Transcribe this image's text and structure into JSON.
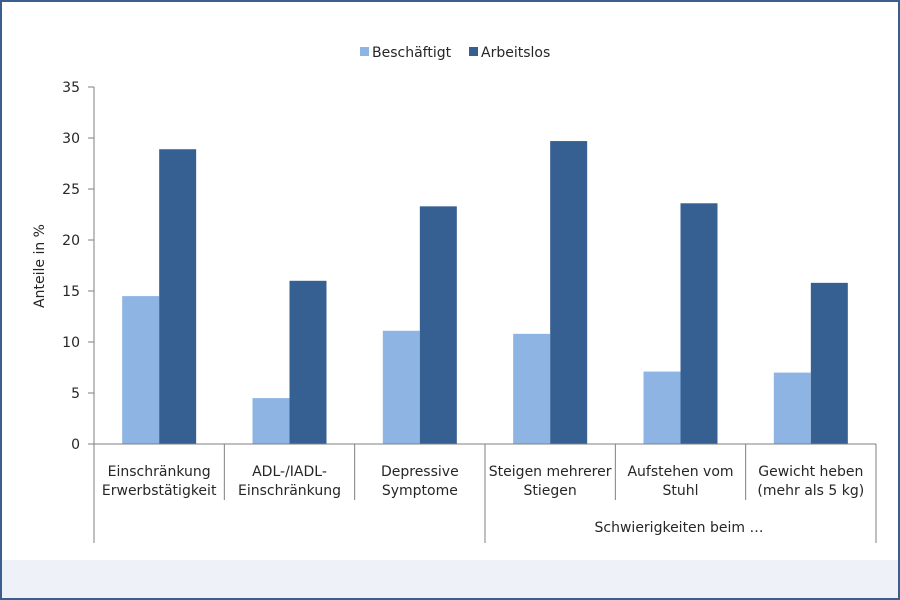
{
  "chart_data": {
    "type": "bar",
    "ylabel": "Anteile in %",
    "ylim": [
      0,
      35
    ],
    "yticks": [
      0,
      5,
      10,
      15,
      20,
      25,
      30,
      35
    ],
    "grid": false,
    "legend_position": "top-center",
    "categories": [
      [
        "Einschränkung",
        "Erwerbstätigkeit"
      ],
      [
        "ADL-/IADL-",
        "Einschränkung"
      ],
      [
        "Depressive",
        "Symptome"
      ],
      [
        "Steigen mehrerer",
        "Stiegen"
      ],
      [
        "Aufstehen vom",
        "Stuhl"
      ],
      [
        "Gewicht heben",
        "(mehr als 5 kg)"
      ]
    ],
    "group_label": "Schwierigkeiten beim …",
    "series": [
      {
        "name": "Beschäftigt",
        "color": "#8eb4e3",
        "values": [
          14.5,
          4.5,
          11.1,
          10.8,
          7.1,
          7.0
        ]
      },
      {
        "name": "Arbeitslos",
        "color": "#376092",
        "values": [
          28.9,
          16.0,
          23.3,
          29.7,
          23.6,
          15.8
        ]
      }
    ]
  }
}
